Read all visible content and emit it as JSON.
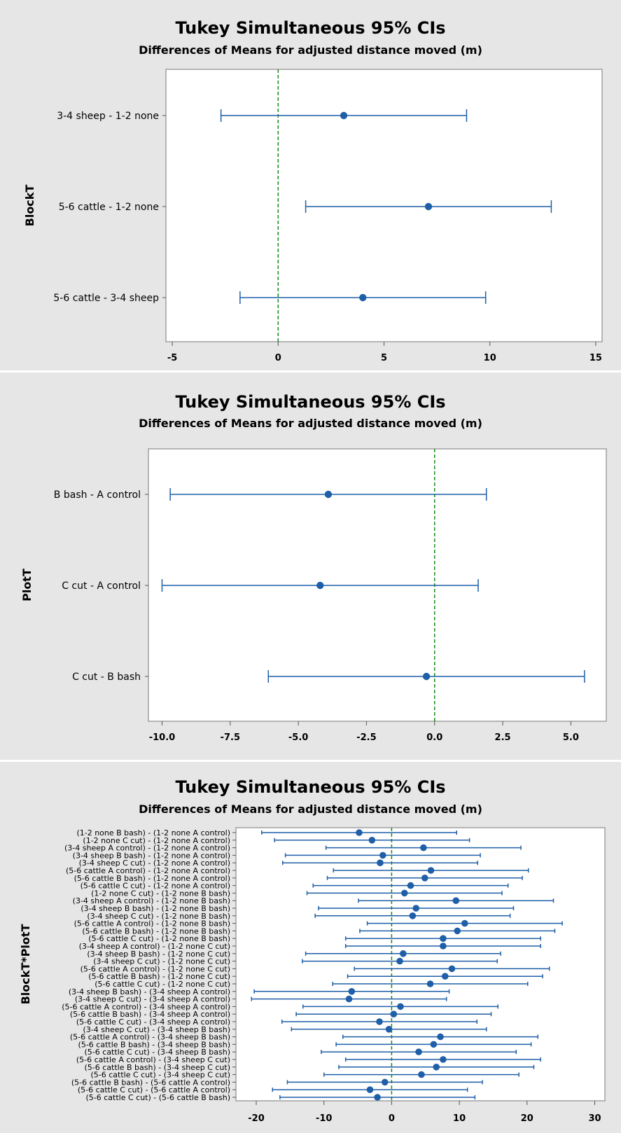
{
  "chart_data": [
    {
      "type": "interval",
      "title": "Tukey Simultaneous 95% CIs",
      "subtitle": "Differences of Means for adjusted distance moved (m)",
      "ylabel": "BlockT",
      "xlim": [
        -5.3,
        15.3
      ],
      "xticks": [
        -5,
        0,
        5,
        10,
        15
      ],
      "xtick_labels": [
        "-5",
        "0",
        "5",
        "10",
        "15"
      ],
      "reference_line": 0,
      "comparisons": [
        {
          "label": "3-4 sheep - 1-2 none",
          "mean": 3.1,
          "lower": -2.7,
          "upper": 8.9
        },
        {
          "label": "5-6 cattle - 1-2 none",
          "mean": 7.1,
          "lower": 1.3,
          "upper": 12.9
        },
        {
          "label": "5-6 cattle - 3-4 sheep",
          "mean": 4.0,
          "lower": -1.8,
          "upper": 9.8
        }
      ]
    },
    {
      "type": "interval",
      "title": "Tukey Simultaneous 95% CIs",
      "subtitle": "Differences of Means for adjusted distance moved (m)",
      "ylabel": "PlotT",
      "xlim": [
        -10.5,
        6.3
      ],
      "xticks": [
        -10,
        -7.5,
        -5,
        -2.5,
        0,
        2.5,
        5
      ],
      "xtick_labels": [
        "-10.0",
        "-7.5",
        "-5.0",
        "-2.5",
        "0.0",
        "2.5",
        "5.0"
      ],
      "reference_line": 0,
      "comparisons": [
        {
          "label": "B bash - A control",
          "mean": -3.9,
          "lower": -9.7,
          "upper": 1.9
        },
        {
          "label": "C cut - A control",
          "mean": -4.2,
          "lower": -10.0,
          "upper": 1.6
        },
        {
          "label": "C cut - B bash",
          "mean": -0.3,
          "lower": -6.1,
          "upper": 5.5
        }
      ]
    },
    {
      "type": "interval",
      "title": "Tukey Simultaneous 95% CIs",
      "subtitle": "Differences of Means for adjusted distance moved (m)",
      "ylabel": "BlockT*PlotT",
      "xlim": [
        -23,
        31.5
      ],
      "xticks": [
        -20,
        -10,
        0,
        10,
        20,
        30
      ],
      "xtick_labels": [
        "-20",
        "-10",
        "0",
        "10",
        "20",
        "30"
      ],
      "reference_line": 0,
      "comparisons": [
        {
          "label": "(1-2 none B bash) - (1-2 none A control)",
          "mean": -4.8,
          "lower": -19.2,
          "upper": 9.6
        },
        {
          "label": "(1-2 none C cut) - (1-2 none A control)",
          "mean": -2.9,
          "lower": -17.3,
          "upper": 11.5
        },
        {
          "label": "(3-4 sheep A control) - (1-2 none A control)",
          "mean": 4.7,
          "lower": -9.7,
          "upper": 19.1
        },
        {
          "label": "(3-4 sheep B bash) - (1-2 none A control)",
          "mean": -1.3,
          "lower": -15.7,
          "upper": 13.1
        },
        {
          "label": "(3-4 sheep C cut) - (1-2 none A control)",
          "mean": -1.7,
          "lower": -16.1,
          "upper": 12.7
        },
        {
          "label": "(5-6 cattle A control) - (1-2 none A control)",
          "mean": 5.8,
          "lower": -8.6,
          "upper": 20.2
        },
        {
          "label": "(5-6 cattle B bash) - (1-2 none A control)",
          "mean": 4.9,
          "lower": -9.5,
          "upper": 19.3
        },
        {
          "label": "(5-6 cattle C cut) - (1-2 none A control)",
          "mean": 2.8,
          "lower": -11.6,
          "upper": 17.2
        },
        {
          "label": "(1-2 none C cut) - (1-2 none B bash)",
          "mean": 1.9,
          "lower": -12.5,
          "upper": 16.3
        },
        {
          "label": "(3-4 sheep A control) - (1-2 none B bash)",
          "mean": 9.5,
          "lower": -4.9,
          "upper": 23.9
        },
        {
          "label": "(3-4 sheep B bash) - (1-2 none B bash)",
          "mean": 3.6,
          "lower": -10.8,
          "upper": 18.0
        },
        {
          "label": "(3-4 sheep C cut) - (1-2 none B bash)",
          "mean": 3.1,
          "lower": -11.3,
          "upper": 17.5
        },
        {
          "label": "(5-6 cattle A control) - (1-2 none B bash)",
          "mean": 10.8,
          "lower": -3.6,
          "upper": 25.2
        },
        {
          "label": "(5-6 cattle B bash) - (1-2 none B bash)",
          "mean": 9.7,
          "lower": -4.7,
          "upper": 24.1
        },
        {
          "label": "(5-6 cattle C cut) - (1-2 none B bash)",
          "mean": 7.6,
          "lower": -6.8,
          "upper": 22.0
        },
        {
          "label": "(3-4 sheep A control) - (1-2 none C cut)",
          "mean": 7.6,
          "lower": -6.8,
          "upper": 22.0
        },
        {
          "label": "(3-4 sheep B bash) - (1-2 none C cut)",
          "mean": 1.7,
          "lower": -12.7,
          "upper": 16.1
        },
        {
          "label": "(3-4 sheep C cut) - (1-2 none C cut)",
          "mean": 1.2,
          "lower": -13.2,
          "upper": 15.6
        },
        {
          "label": "(5-6 cattle A control) - (1-2 none C cut)",
          "mean": 8.9,
          "lower": -5.5,
          "upper": 23.3
        },
        {
          "label": "(5-6 cattle B bash) - (1-2 none C cut)",
          "mean": 7.9,
          "lower": -6.5,
          "upper": 22.3
        },
        {
          "label": "(5-6 cattle C cut) - (1-2 none C cut)",
          "mean": 5.7,
          "lower": -8.7,
          "upper": 20.1
        },
        {
          "label": "(3-4 sheep B bash) - (3-4 sheep A control)",
          "mean": -5.9,
          "lower": -20.3,
          "upper": 8.5
        },
        {
          "label": "(3-4 sheep C cut) - (3-4 sheep A control)",
          "mean": -6.3,
          "lower": -20.7,
          "upper": 8.1
        },
        {
          "label": "(5-6 cattle A control) - (3-4 sheep A control)",
          "mean": 1.3,
          "lower": -13.1,
          "upper": 15.7
        },
        {
          "label": "(5-6 cattle B bash) - (3-4 sheep A control)",
          "mean": 0.3,
          "lower": -14.1,
          "upper": 14.7
        },
        {
          "label": "(5-6 cattle C cut) - (3-4 sheep A control)",
          "mean": -1.8,
          "lower": -16.2,
          "upper": 12.6
        },
        {
          "label": "(3-4 sheep C cut) - (3-4 sheep B bash)",
          "mean": -0.4,
          "lower": -14.8,
          "upper": 14.0
        },
        {
          "label": "(5-6 cattle A control) - (3-4 sheep B bash)",
          "mean": 7.2,
          "lower": -7.2,
          "upper": 21.6
        },
        {
          "label": "(5-6 cattle B bash) - (3-4 sheep B bash)",
          "mean": 6.2,
          "lower": -8.2,
          "upper": 20.6
        },
        {
          "label": "(5-6 cattle C cut) - (3-4 sheep B bash)",
          "mean": 4.0,
          "lower": -10.4,
          "upper": 18.4
        },
        {
          "label": "(5-6 cattle A control) - (3-4 sheep C cut)",
          "mean": 7.6,
          "lower": -6.8,
          "upper": 22.0
        },
        {
          "label": "(5-6 cattle B bash) - (3-4 sheep C cut)",
          "mean": 6.6,
          "lower": -7.8,
          "upper": 21.0
        },
        {
          "label": "(5-6 cattle C cut) - (3-4 sheep C cut)",
          "mean": 4.4,
          "lower": -10.0,
          "upper": 18.8
        },
        {
          "label": "(5-6 cattle B bash) - (5-6 cattle A control)",
          "mean": -1.0,
          "lower": -15.4,
          "upper": 13.4
        },
        {
          "label": "(5-6 cattle C cut) - (5-6 cattle A control)",
          "mean": -3.2,
          "lower": -17.6,
          "upper": 11.2
        },
        {
          "label": "(5-6 cattle C cut) - (5-6 cattle B bash)",
          "mean": -2.1,
          "lower": -16.5,
          "upper": 12.3
        }
      ]
    }
  ],
  "colors": {
    "interval": "#1f5fa8",
    "reference_line": "#1a8a1a",
    "panel_background": "#e6e6e6",
    "plot_background": "#ffffff",
    "frame": "#a0a0a0"
  }
}
